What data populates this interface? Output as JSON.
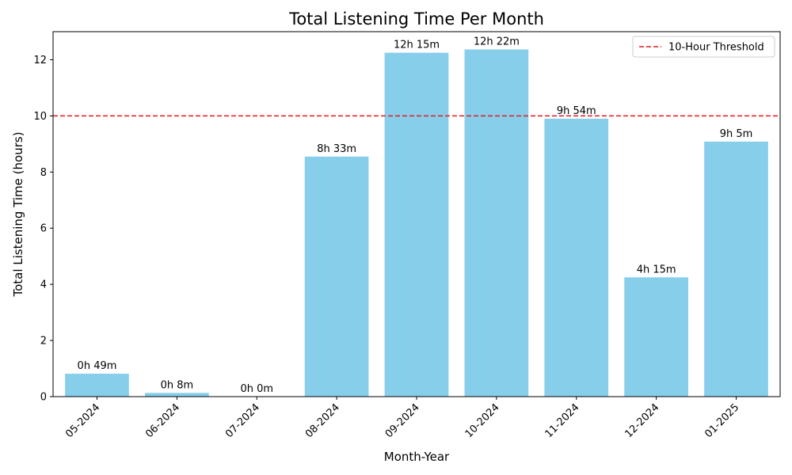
{
  "chart_data": {
    "type": "bar",
    "title": "Total Listening Time Per Month",
    "xlabel": "Month-Year",
    "ylabel": "Total Listening Time (hours)",
    "categories": [
      "05-2024",
      "06-2024",
      "07-2024",
      "08-2024",
      "09-2024",
      "10-2024",
      "11-2024",
      "12-2024",
      "01-2025"
    ],
    "values": [
      0.8167,
      0.1333,
      0.0,
      8.55,
      12.25,
      12.3667,
      9.9,
      4.25,
      9.0833
    ],
    "data_labels": [
      "0h 49m",
      "0h 8m",
      "0h 0m",
      "8h 33m",
      "12h 15m",
      "12h 22m",
      "9h 54m",
      "4h 15m",
      "9h 5m"
    ],
    "ylim": [
      0,
      13
    ],
    "yticks": [
      0,
      2,
      4,
      6,
      8,
      10,
      12
    ],
    "bar_color": "#87ceeb",
    "threshold": {
      "value": 10,
      "label": "10-Hour Threshold",
      "color": "#e41a1c",
      "style": "dashed"
    },
    "legend_position": "top-right",
    "grid": false
  }
}
